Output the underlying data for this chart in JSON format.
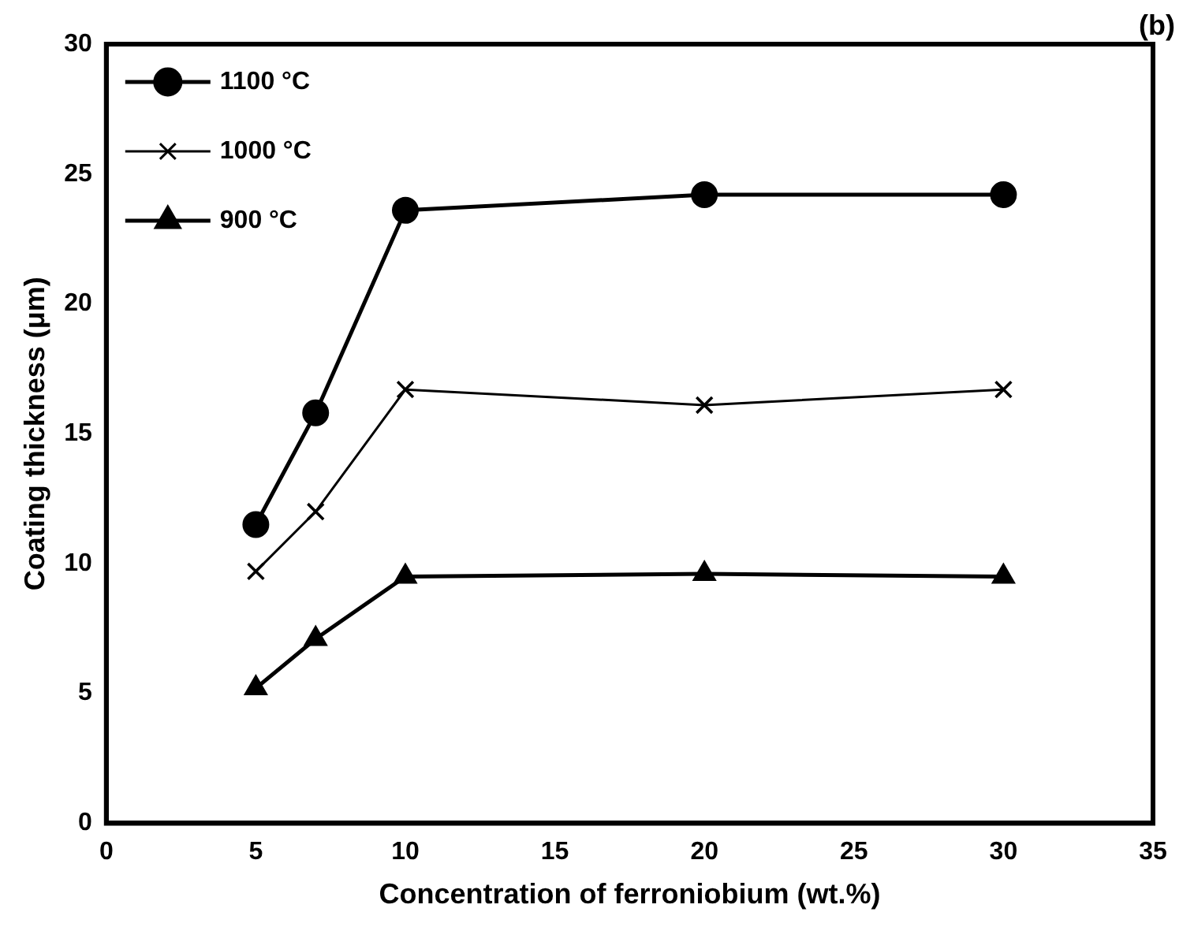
{
  "chart_data": {
    "type": "line",
    "xlabel": "Concentration of ferroniobium (wt.%)",
    "ylabel": "Coating thickness (μm)",
    "annotations": [
      "(b)"
    ],
    "x": [
      5,
      7,
      10,
      20,
      30
    ],
    "series": [
      {
        "name": "1100 °C",
        "color": "#000000",
        "marker": "circle",
        "values": [
          11.5,
          15.8,
          23.6,
          24.2,
          24.2
        ]
      },
      {
        "name": "1000 °C",
        "color": "#000000",
        "marker": "cross",
        "values": [
          9.7,
          12.0,
          16.7,
          16.1,
          16.7
        ]
      },
      {
        "name": "900 °C",
        "color": "#000000",
        "marker": "triangle",
        "values": [
          5.2,
          7.1,
          9.5,
          9.6,
          9.5
        ]
      }
    ],
    "xlim": [
      0,
      35
    ],
    "xticks": [
      0,
      5,
      10,
      15,
      20,
      25,
      30,
      35
    ],
    "ylim": [
      0,
      30
    ],
    "yticks": [
      0,
      5,
      10,
      15,
      20,
      25,
      30
    ],
    "grid": false,
    "legend": "top left",
    "line_style": "solid"
  }
}
